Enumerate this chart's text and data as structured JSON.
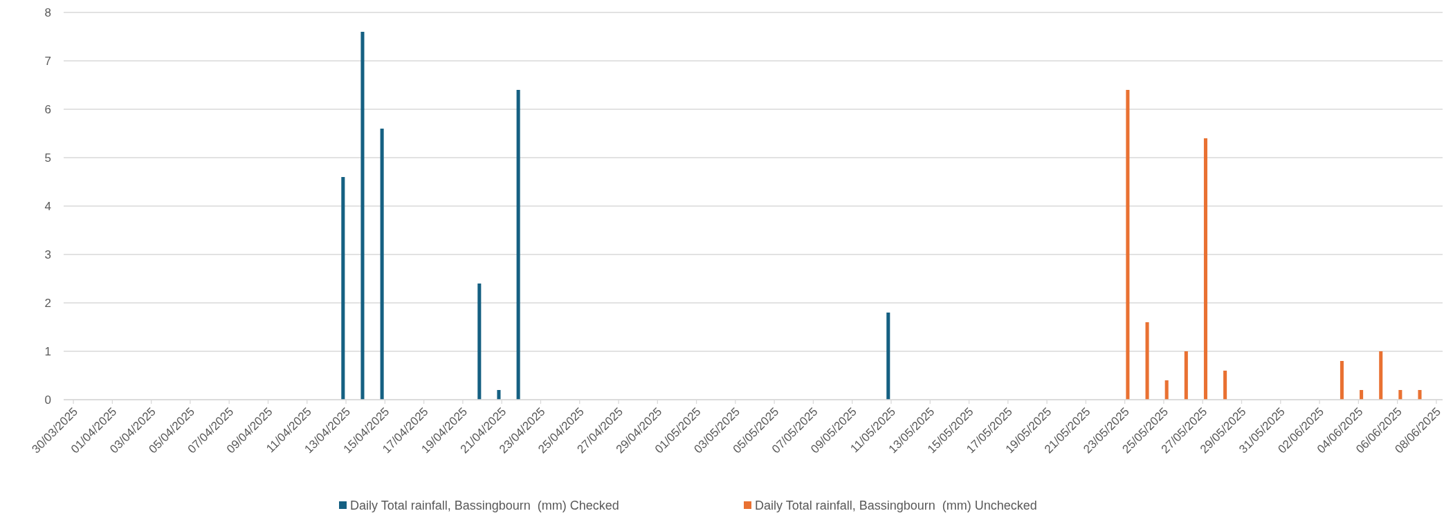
{
  "chart_data": {
    "type": "bar",
    "categories": [
      "30/03/2025",
      null,
      "01/04/2025",
      null,
      "03/04/2025",
      null,
      "05/04/2025",
      null,
      "07/04/2025",
      null,
      "09/04/2025",
      null,
      "11/04/2025",
      null,
      "13/04/2025",
      null,
      "15/04/2025",
      null,
      "17/04/2025",
      null,
      "19/04/2025",
      null,
      "21/04/2025",
      null,
      "23/04/2025",
      null,
      "25/04/2025",
      null,
      "27/04/2025",
      null,
      "29/04/2025",
      null,
      "01/05/2025",
      null,
      "03/05/2025",
      null,
      "05/05/2025",
      null,
      "07/05/2025",
      null,
      "09/05/2025",
      null,
      "11/05/2025",
      null,
      "13/05/2025",
      null,
      "15/05/2025",
      null,
      "17/05/2025",
      null,
      "19/05/2025",
      null,
      "21/05/2025",
      null,
      "23/05/2025",
      null,
      "25/05/2025",
      null,
      "27/05/2025",
      null,
      "29/05/2025",
      null,
      "31/05/2025",
      null,
      "02/06/2025",
      null,
      "04/06/2025",
      null,
      "06/06/2025",
      null,
      "08/06/2025"
    ],
    "series": [
      {
        "name": "Daily Total rainfall, Bassingbourn  (mm) Checked",
        "color": "#156082",
        "values": [
          0,
          0,
          0,
          0,
          0,
          0,
          0,
          0,
          0,
          0,
          0,
          0,
          0,
          0,
          4.6,
          7.6,
          5.6,
          0,
          0,
          0,
          0,
          2.4,
          0.2,
          6.4,
          0,
          0,
          0,
          0,
          0,
          0,
          0,
          0,
          0,
          0,
          0,
          0,
          0,
          0,
          0,
          0,
          0,
          0,
          1.8,
          0,
          0,
          0,
          0,
          0,
          0,
          0,
          0,
          0,
          0,
          0,
          null,
          null,
          null,
          null,
          null,
          null,
          null,
          null,
          null,
          null,
          null,
          null,
          null,
          null,
          null,
          null,
          null
        ]
      },
      {
        "name": "Daily Total rainfall, Bassingbourn  (mm) Unchecked",
        "color": "#e97132",
        "values": [
          null,
          null,
          null,
          null,
          null,
          null,
          null,
          null,
          null,
          null,
          null,
          null,
          null,
          null,
          null,
          null,
          null,
          null,
          null,
          null,
          null,
          null,
          null,
          null,
          null,
          null,
          null,
          null,
          null,
          null,
          null,
          null,
          null,
          null,
          null,
          null,
          null,
          null,
          null,
          null,
          null,
          null,
          null,
          null,
          null,
          null,
          null,
          null,
          null,
          null,
          null,
          null,
          null,
          null,
          6.4,
          1.6,
          0.4,
          1.0,
          5.4,
          0.6,
          0,
          0,
          0,
          0,
          0,
          0.8,
          0.2,
          1.0,
          0.2,
          0.2,
          0
        ]
      }
    ],
    "ylim": [
      0,
      8
    ],
    "yticks": [
      0,
      1,
      2,
      3,
      4,
      5,
      6,
      7,
      8
    ],
    "grid": "y",
    "legend": "bottom"
  }
}
